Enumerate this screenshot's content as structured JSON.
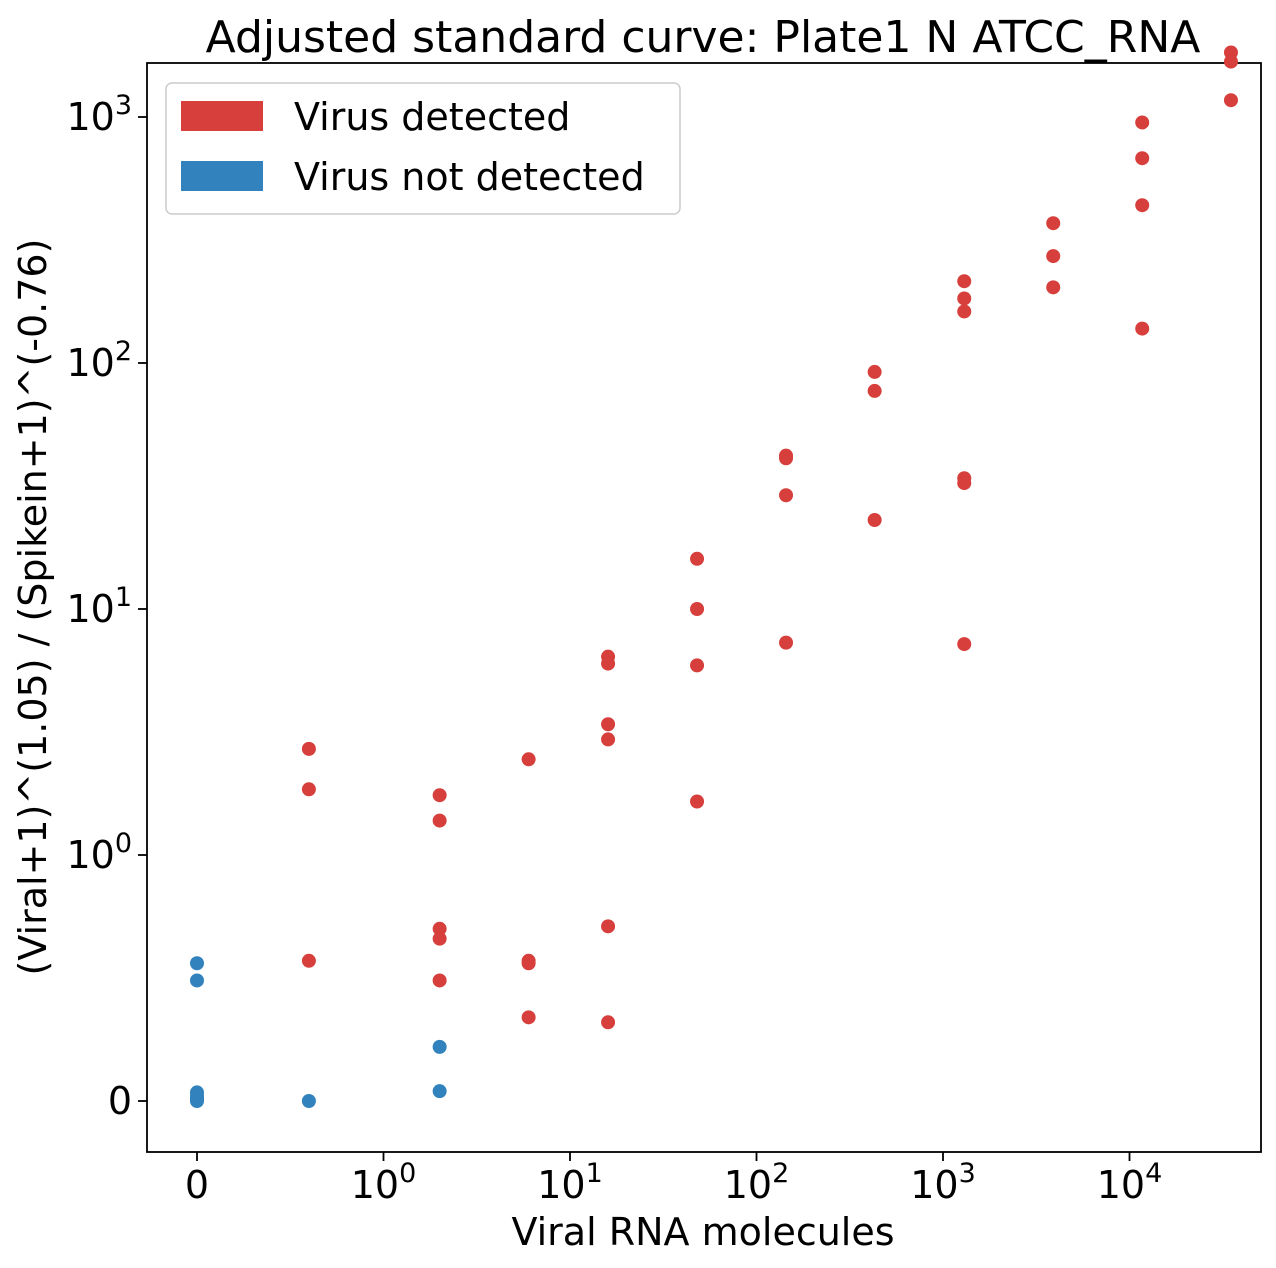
{
  "chart_data": {
    "type": "scatter",
    "title": "Adjusted standard curve: Plate1 N ATCC_RNA",
    "xlabel": "Viral RNA molecules",
    "ylabel": "(Viral+1)^(1.05) / (Spikein+1)^(-0.76)",
    "xscale": "symlog",
    "yscale": "symlog",
    "x_ticks": [
      {
        "value": 0,
        "base": "0",
        "exp": ""
      },
      {
        "value": 1,
        "base": "10",
        "exp": "0"
      },
      {
        "value": 10,
        "base": "10",
        "exp": "1"
      },
      {
        "value": 100,
        "base": "10",
        "exp": "2"
      },
      {
        "value": 1000,
        "base": "10",
        "exp": "3"
      },
      {
        "value": 10000,
        "base": "10",
        "exp": "4"
      }
    ],
    "y_ticks": [
      {
        "value": 0,
        "base": "0",
        "exp": ""
      },
      {
        "value": 1,
        "base": "10",
        "exp": "0"
      },
      {
        "value": 10,
        "base": "10",
        "exp": "1"
      },
      {
        "value": 100,
        "base": "10",
        "exp": "2"
      },
      {
        "value": 1000,
        "base": "10",
        "exp": "3"
      }
    ],
    "legend": {
      "position": "upper-left",
      "entries": [
        {
          "label": "Virus detected",
          "color": "#d63f3b"
        },
        {
          "label": "Virus not detected",
          "color": "#3182bd"
        }
      ]
    },
    "series": [
      {
        "name": "Virus detected",
        "color": "#d63f3b",
        "points": [
          [
            0.6,
            2.7
          ],
          [
            0.6,
            1.85
          ],
          [
            0.6,
            0.57
          ],
          [
            2.0,
            1.75
          ],
          [
            2.0,
            1.38
          ],
          [
            2.0,
            0.7
          ],
          [
            2.0,
            0.66
          ],
          [
            2.0,
            0.49
          ],
          [
            6.0,
            2.45
          ],
          [
            6.0,
            0.57
          ],
          [
            6.0,
            0.56
          ],
          [
            6.0,
            0.34
          ],
          [
            16,
            6.4
          ],
          [
            16,
            6.0
          ],
          [
            16,
            3.4
          ],
          [
            16,
            2.95
          ],
          [
            16,
            0.71
          ],
          [
            16,
            0.32
          ],
          [
            48,
            16.0
          ],
          [
            48,
            10.0
          ],
          [
            48,
            5.9
          ],
          [
            48,
            1.65
          ],
          [
            144,
            42
          ],
          [
            144,
            41
          ],
          [
            144,
            29
          ],
          [
            144,
            7.3
          ],
          [
            430,
            92
          ],
          [
            430,
            77
          ],
          [
            430,
            23
          ],
          [
            1300,
            215
          ],
          [
            1300,
            183
          ],
          [
            1300,
            162
          ],
          [
            1300,
            34
          ],
          [
            1300,
            32.5
          ],
          [
            1300,
            7.2
          ],
          [
            3900,
            370
          ],
          [
            3900,
            272
          ],
          [
            3900,
            203
          ],
          [
            11700,
            950
          ],
          [
            11700,
            680
          ],
          [
            11700,
            438
          ],
          [
            11700,
            138
          ],
          [
            35000,
            1830
          ],
          [
            35000,
            1680
          ],
          [
            35000,
            1170
          ]
        ]
      },
      {
        "name": "Virus not detected",
        "color": "#3182bd",
        "points": [
          [
            0,
            0.56
          ],
          [
            0,
            0.49
          ],
          [
            0,
            0.035
          ],
          [
            0,
            0.02
          ],
          [
            0,
            0.01
          ],
          [
            0,
            0.005
          ],
          [
            0,
            0.0
          ],
          [
            0.6,
            0.0
          ],
          [
            2.0,
            0.22
          ],
          [
            2.0,
            0.04
          ]
        ]
      }
    ]
  }
}
